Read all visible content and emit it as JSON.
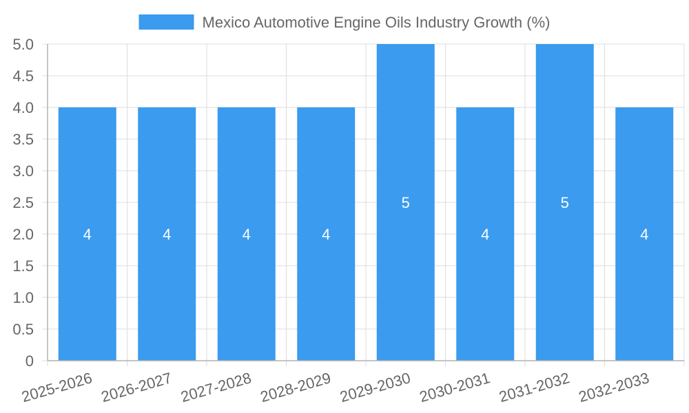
{
  "chart_data": {
    "type": "bar",
    "title": "",
    "xlabel": "",
    "ylabel": "",
    "categories": [
      "2025-2026",
      "2026-2027",
      "2027-2028",
      "2028-2029",
      "2029-2030",
      "2030-2031",
      "2031-2032",
      "2032-2033"
    ],
    "series": [
      {
        "name": "Mexico Automotive Engine Oils Industry Growth (%)",
        "values": [
          4,
          4,
          4,
          4,
          5,
          4,
          5,
          4
        ],
        "color": "#3a9bef"
      }
    ],
    "ylim": [
      0,
      5.0
    ],
    "yticks": [
      "0",
      "0.5",
      "1.0",
      "1.5",
      "2.0",
      "2.5",
      "3.0",
      "3.5",
      "4.0",
      "4.5",
      "5.0"
    ],
    "data_labels": [
      "4",
      "4",
      "4",
      "4",
      "5",
      "4",
      "5",
      "4"
    ],
    "grid": true,
    "legend_position": "top-center"
  },
  "colors": {
    "bar": "#3a9bef",
    "grid": "#dcdcdc",
    "axis": "#b0b0b0",
    "text": "#666666",
    "label": "#ffffff"
  }
}
